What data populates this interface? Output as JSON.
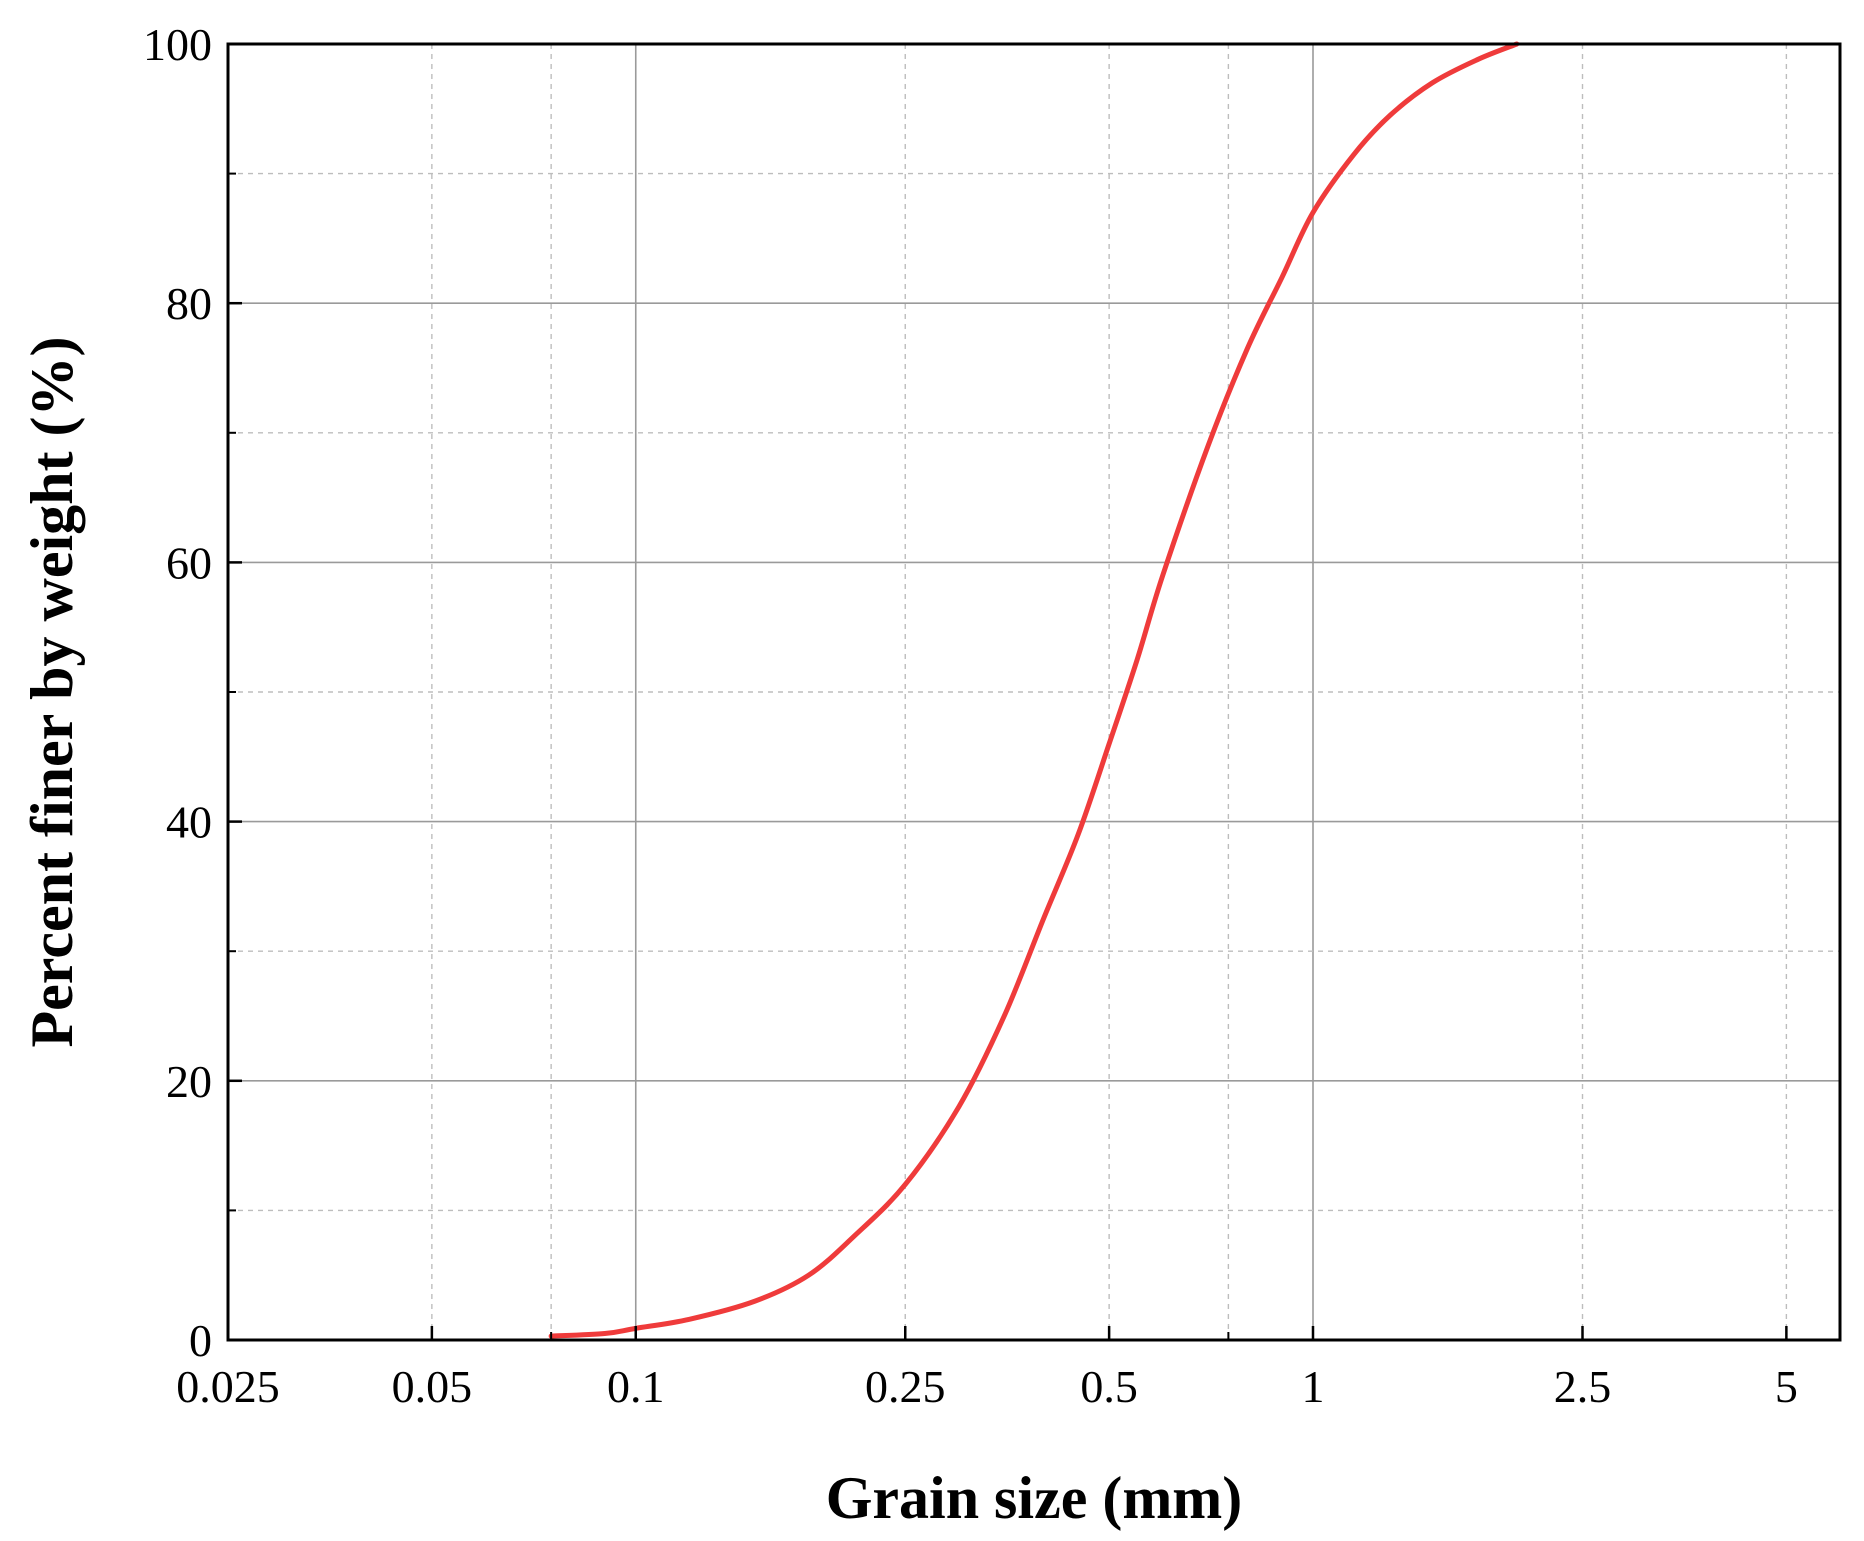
{
  "chart_data": {
    "type": "line",
    "title": "",
    "xlabel": "Grain size (mm)",
    "ylabel": "Percent finer by weight (%)",
    "x_scale": "log",
    "xlim": [
      0.025,
      6.0
    ],
    "ylim": [
      0,
      100
    ],
    "x_ticks": [
      {
        "value": 0.025,
        "label": "0.025"
      },
      {
        "value": 0.05,
        "label": "0.05"
      },
      {
        "value": 0.1,
        "label": "0.1"
      },
      {
        "value": 0.25,
        "label": "0.25"
      },
      {
        "value": 0.5,
        "label": "0.5"
      },
      {
        "value": 1,
        "label": "1"
      },
      {
        "value": 2.5,
        "label": "2.5"
      },
      {
        "value": 5,
        "label": "5"
      }
    ],
    "x_minor_gridlines": [
      0.05,
      0.075,
      0.25,
      0.5,
      0.75,
      2.5,
      5
    ],
    "x_major_gridlines": [
      0.1,
      1
    ],
    "y_ticks": [
      {
        "value": 0,
        "label": "0"
      },
      {
        "value": 20,
        "label": "20"
      },
      {
        "value": 40,
        "label": "40"
      },
      {
        "value": 60,
        "label": "60"
      },
      {
        "value": 80,
        "label": "80"
      },
      {
        "value": 100,
        "label": "100"
      }
    ],
    "y_minor_gridlines": [
      10,
      30,
      50,
      70,
      90
    ],
    "y_major_gridlines": [
      20,
      40,
      60,
      80
    ],
    "grid": true,
    "series": [
      {
        "color": "#ef3b3b",
        "points": [
          [
            0.075,
            0.3
          ],
          [
            0.09,
            0.5
          ],
          [
            0.1,
            0.9
          ],
          [
            0.12,
            1.6
          ],
          [
            0.15,
            3.0
          ],
          [
            0.18,
            5.0
          ],
          [
            0.21,
            8.0
          ],
          [
            0.25,
            12.0
          ],
          [
            0.3,
            18.0
          ],
          [
            0.35,
            25.0
          ],
          [
            0.4,
            32.5
          ],
          [
            0.45,
            39.0
          ],
          [
            0.5,
            46.0
          ],
          [
            0.55,
            52.5
          ],
          [
            0.6,
            59.0
          ],
          [
            0.7,
            69.0
          ],
          [
            0.8,
            76.5
          ],
          [
            0.9,
            82.0
          ],
          [
            1.0,
            87.0
          ],
          [
            1.15,
            91.5
          ],
          [
            1.3,
            94.5
          ],
          [
            1.5,
            97.0
          ],
          [
            1.75,
            98.8
          ],
          [
            2.0,
            100.0
          ]
        ]
      }
    ]
  }
}
